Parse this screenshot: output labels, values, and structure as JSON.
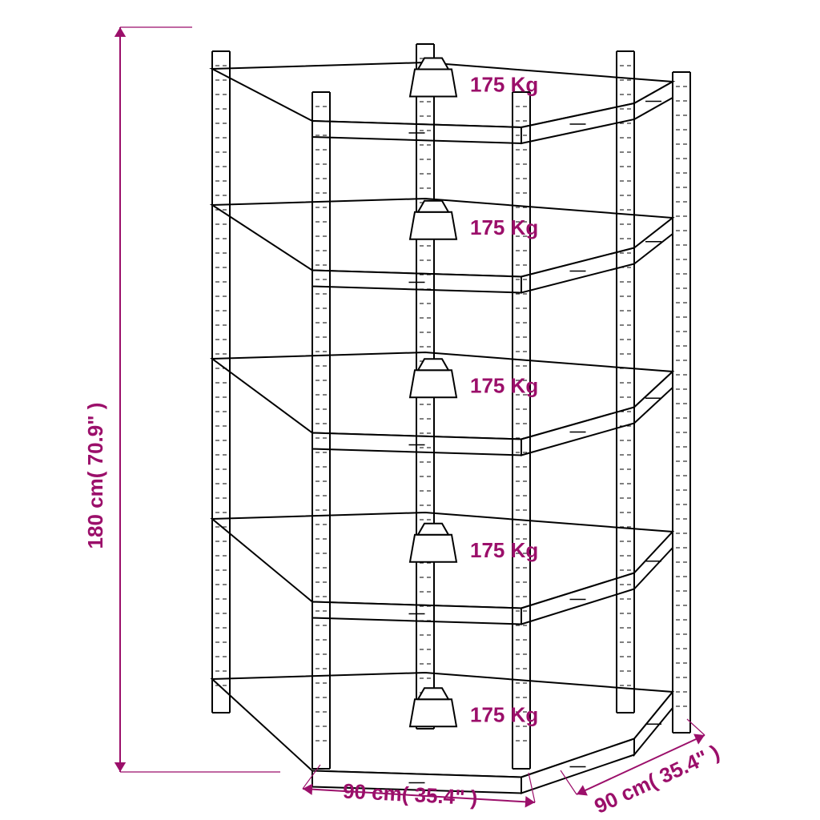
{
  "accent_color": "#9b0f6a",
  "line_color": "#000000",
  "line_width": 2,
  "bg_color": "#ffffff",
  "dimensions": {
    "height": "180 cm( 70.9\" )",
    "width": "90 cm( 35.4\" )",
    "depth": "90 cm( 35.4\" )"
  },
  "weight_label": "175 Kg",
  "weights_count": 5,
  "font_size_pt": 20
}
